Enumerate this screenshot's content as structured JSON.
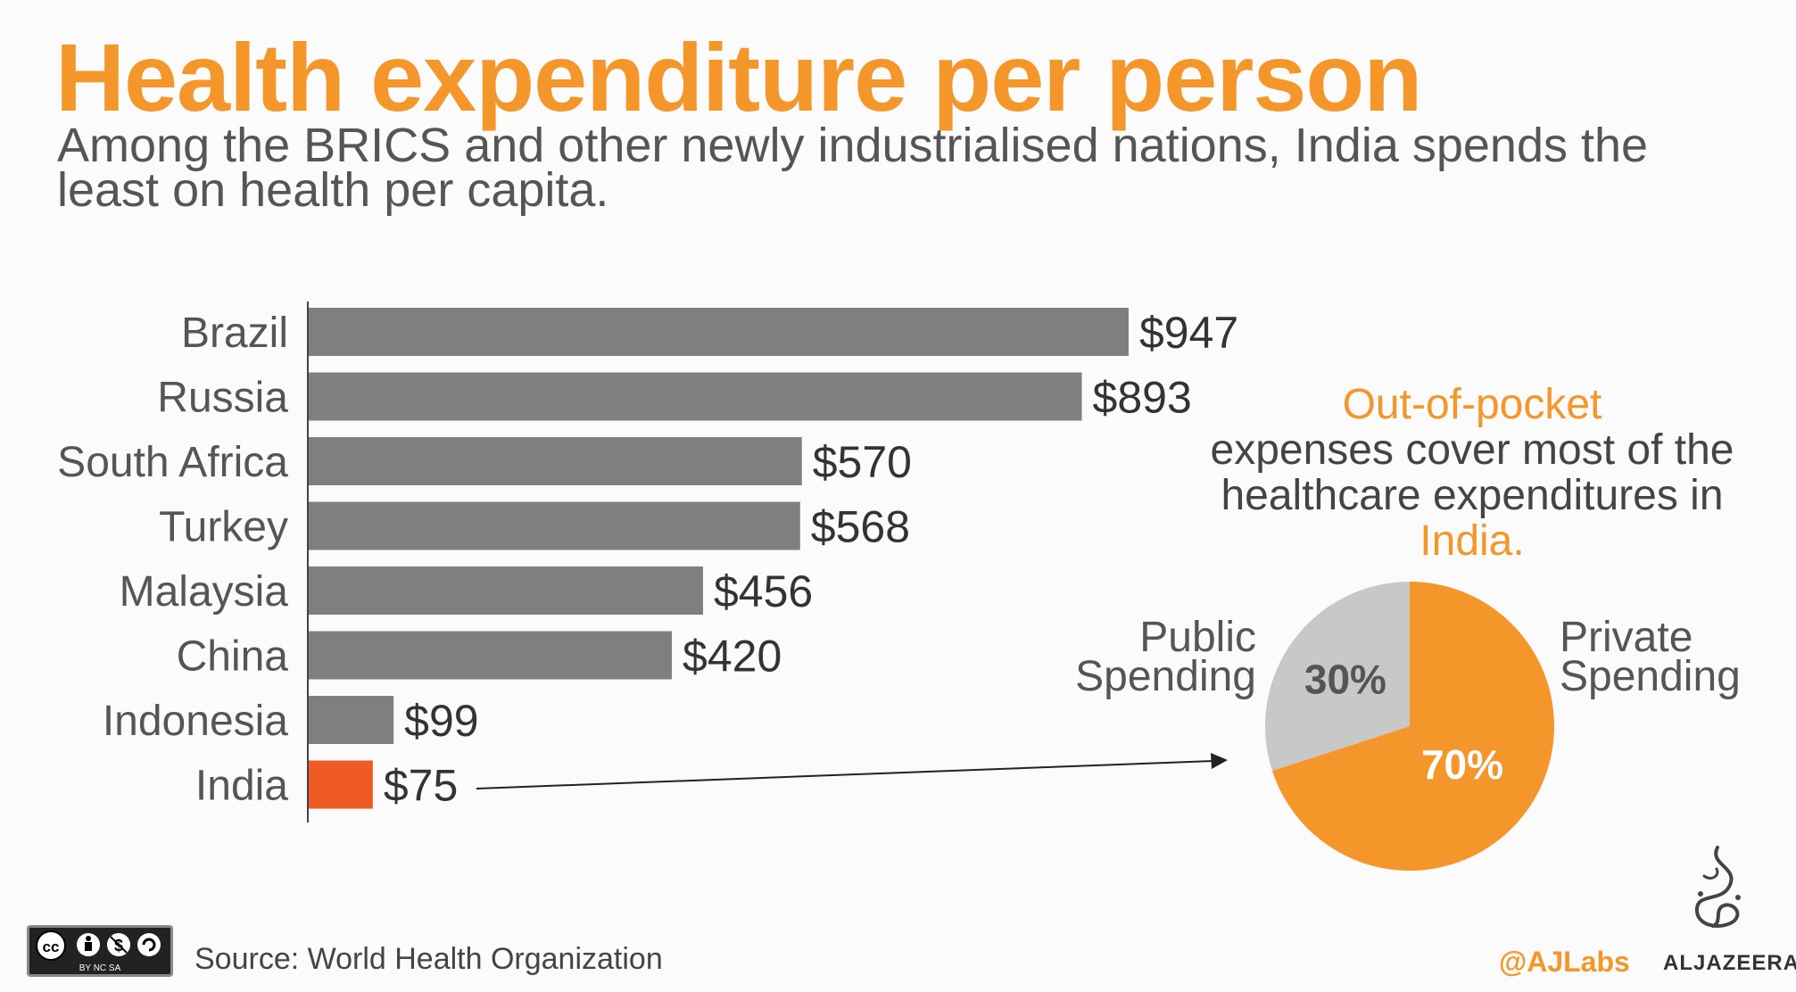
{
  "header": {
    "title": "Health expenditure per person",
    "subtitle": "Among the BRICS and other newly industrialised nations, India spends the least on health per capita."
  },
  "chart_data": [
    {
      "type": "bar",
      "orientation": "horizontal",
      "categories": [
        "Brazil",
        "Russia",
        "South Africa",
        "Turkey",
        "Malaysia",
        "China",
        "Indonesia",
        "India"
      ],
      "values": [
        947,
        893,
        570,
        568,
        456,
        420,
        99,
        75
      ],
      "value_labels": [
        "$947",
        "$893",
        "$570",
        "$568",
        "$456",
        "$420",
        "$99",
        "$75"
      ],
      "highlight": "India",
      "colors": {
        "bar": "#7f7f7f",
        "highlight": "#ef5b25"
      }
    },
    {
      "type": "pie",
      "caption": {
        "line_accent": "Out-of-pocket",
        "body": "expenses cover most of the healthcare expenditures in",
        "accent_end": "India."
      },
      "slices": [
        {
          "label_lines": [
            "Private",
            "Spending"
          ],
          "value": 70,
          "display": "70%",
          "color": "#f5962a"
        },
        {
          "label_lines": [
            "Public",
            "Spending"
          ],
          "value": 30,
          "display": "30%",
          "color": "#c8c8c8"
        }
      ]
    }
  ],
  "footer": {
    "source": "Source: World Health Organization",
    "handle": "@AJLabs",
    "brand": "ALJAZEERA",
    "license_text": "BY NC SA",
    "license_icon": "cc-by-nc-sa-icon",
    "brand_icon": "aljazeera-logo-icon"
  },
  "colors": {
    "accent": "#f5962a",
    "text_gray": "#555555"
  }
}
